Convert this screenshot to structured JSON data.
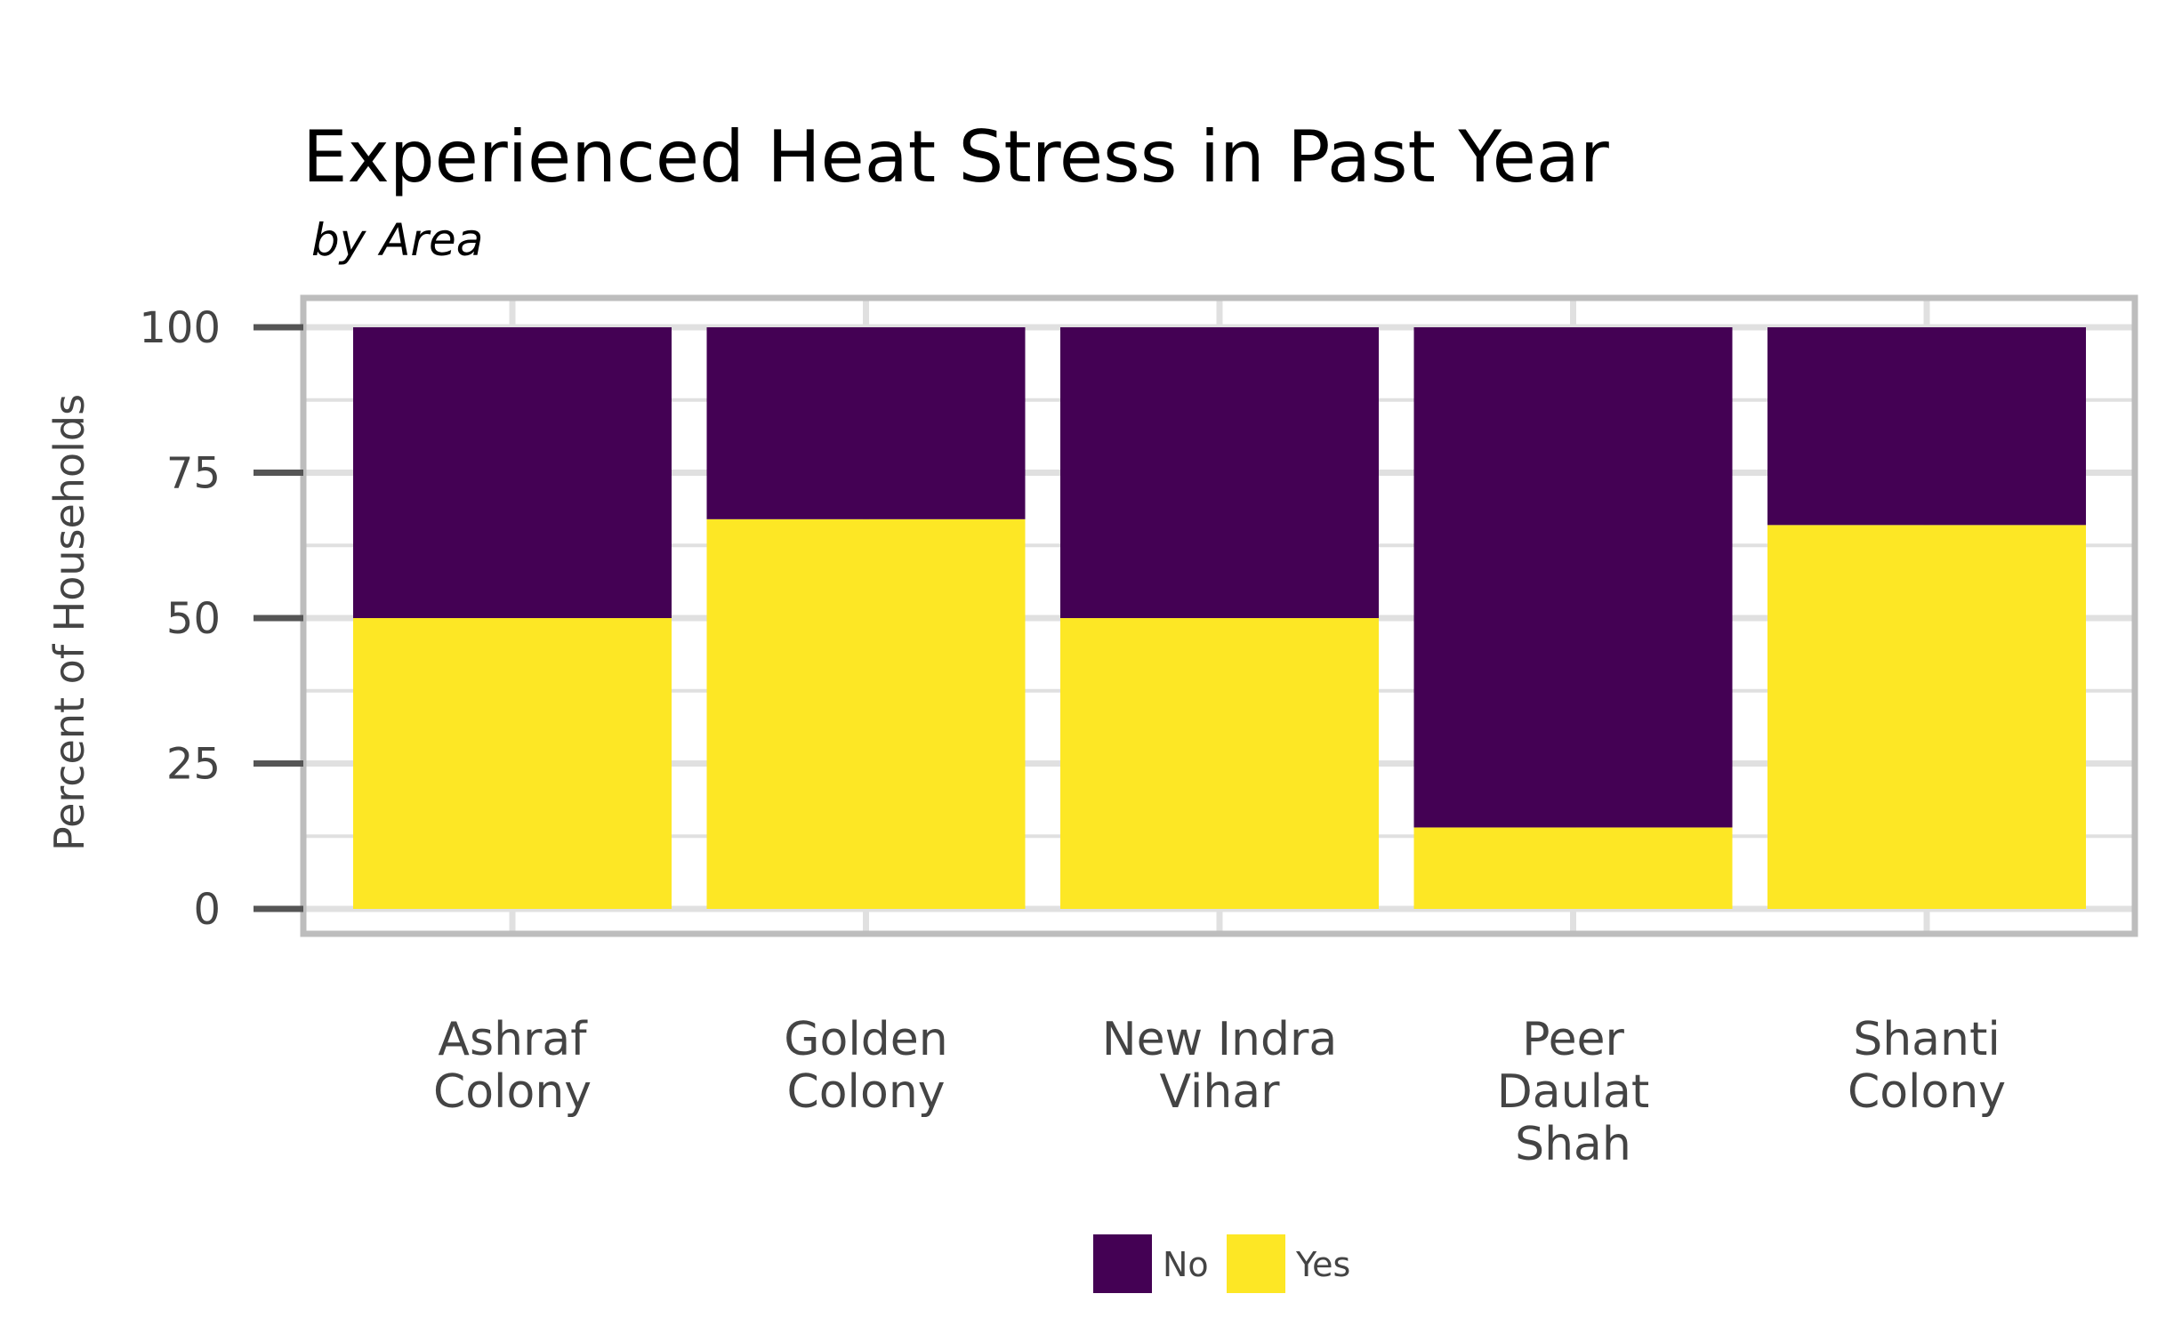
{
  "chart_data": {
    "type": "bar",
    "stacked": true,
    "title": "Experienced Heat Stress in Past Year",
    "subtitle": "by Area",
    "xlabel": "",
    "ylabel": "Percent of Households",
    "ylim": [
      0,
      100
    ],
    "yticks": [
      "0",
      "25",
      "50",
      "75",
      "100"
    ],
    "grid": true,
    "legend_position": "bottom",
    "categories": [
      [
        "Ashraf",
        "Colony"
      ],
      [
        "Golden",
        "Colony"
      ],
      [
        "New Indra",
        "Vihar"
      ],
      [
        "Peer",
        "Daulat",
        "Shah"
      ],
      [
        "Shanti",
        "Colony"
      ]
    ],
    "series": [
      {
        "name": "Yes",
        "color": "#FDE725",
        "values": [
          50,
          67,
          50,
          14,
          66
        ]
      },
      {
        "name": "No",
        "color": "#440154",
        "values": [
          50,
          33,
          50,
          86,
          34
        ]
      }
    ],
    "legend": [
      {
        "name": "No",
        "color": "#440154"
      },
      {
        "name": "Yes",
        "color": "#FDE725"
      }
    ]
  }
}
